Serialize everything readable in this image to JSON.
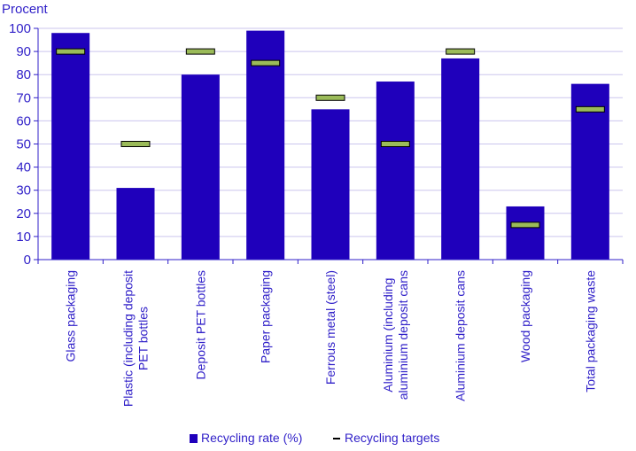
{
  "chart_data": {
    "type": "bar",
    "ylabel": "Procent",
    "ylim": [
      0,
      100
    ],
    "yticks": [
      0,
      10,
      20,
      30,
      40,
      50,
      60,
      70,
      80,
      90,
      100
    ],
    "grid": true,
    "categories": [
      [
        "Glass packaging"
      ],
      [
        "Plastic (including deposit",
        "PET bottles"
      ],
      [
        "Deposit PET bottles"
      ],
      [
        "Paper packaging"
      ],
      [
        "Ferrous metal (steel)"
      ],
      [
        "Aluminium (including",
        "aluminium deposit cans"
      ],
      [
        "Aluminium deposit cans"
      ],
      [
        "Wood packaging"
      ],
      [
        "Total packaging waste"
      ]
    ],
    "series": [
      {
        "name": "Recycling rate (%)",
        "kind": "bar",
        "color": "#1f00bb",
        "values": [
          98,
          31,
          80,
          99,
          65,
          77,
          87,
          23,
          76
        ]
      },
      {
        "name": "Recycling targets",
        "kind": "marker",
        "color": "#9bbb59",
        "values": [
          90,
          50,
          90,
          85,
          70,
          50,
          90,
          15,
          65
        ]
      }
    ],
    "legend": "bottom"
  }
}
